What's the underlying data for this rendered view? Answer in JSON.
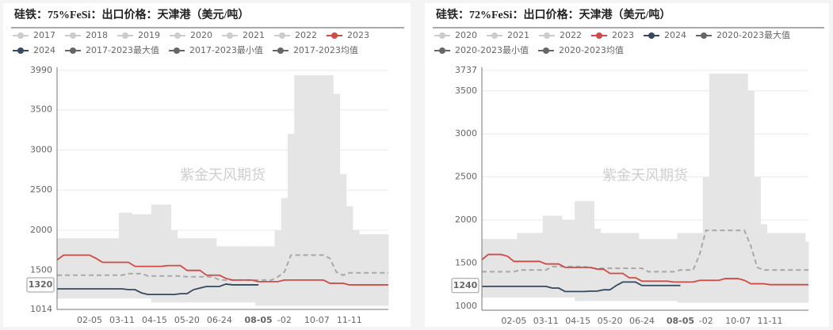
{
  "chart_data": [
    {
      "type": "line",
      "title": "硅铁：75%FeSi：出口价格：天津港（美元/吨）",
      "watermark": "紫金天风期货",
      "legend_inactive": [
        "2017",
        "2018",
        "2019",
        "2020",
        "2021",
        "2022"
      ],
      "inactive_color": "#cccccc",
      "categories": [
        null,
        null,
        null,
        null,
        null,
        "02-05",
        null,
        null,
        null,
        null,
        "03-11",
        null,
        null,
        null,
        null,
        "04-15",
        null,
        null,
        null,
        null,
        "05-20",
        null,
        null,
        null,
        null,
        "06-24",
        null,
        null,
        null,
        null,
        null,
        "08-05",
        null,
        null,
        null,
        "-02",
        null,
        null,
        null,
        null,
        "10-07",
        null,
        null,
        null,
        null,
        "11-11",
        null,
        null,
        null,
        null,
        null,
        null
      ],
      "ylim": [
        1014,
        3990
      ],
      "yticks": [
        1014,
        1500,
        2000,
        2500,
        3000,
        3500,
        3990
      ],
      "grid": true,
      "pointer": {
        "x": "08-05",
        "y": 1320
      },
      "series": [
        {
          "name": "2023",
          "color": "#d14a45",
          "style": "solid",
          "values": [
            1630,
            1690,
            1690,
            1690,
            1690,
            1690,
            1650,
            1600,
            1600,
            1600,
            1600,
            1600,
            1550,
            1550,
            1550,
            1550,
            1550,
            1560,
            1560,
            1560,
            1500,
            1500,
            1500,
            1440,
            1440,
            1440,
            1400,
            1380,
            1380,
            1380,
            1380,
            1360,
            1360,
            1360,
            1360,
            1380,
            1380,
            1380,
            1380,
            1380,
            1380,
            1380,
            1340,
            1340,
            1340,
            1320,
            1320,
            1320,
            1320,
            1320,
            1320,
            1320
          ]
        },
        {
          "name": "2024",
          "color": "#34495e",
          "style": "solid",
          "values": [
            1270,
            1270,
            1270,
            1270,
            1270,
            1270,
            1270,
            1270,
            1270,
            1270,
            1270,
            1260,
            1260,
            1220,
            1200,
            1200,
            1200,
            1200,
            1200,
            1210,
            1210,
            1260,
            1280,
            1300,
            1300,
            1300,
            1330,
            1320,
            1320,
            1320,
            1320,
            1320,
            null,
            null,
            null,
            null,
            null,
            null,
            null,
            null,
            null,
            null,
            null,
            null,
            null,
            null,
            null,
            null,
            null,
            null,
            null,
            null
          ]
        },
        {
          "name": "2017-2023最大值",
          "color": "#666666",
          "style": "band-upper",
          "fill": "#e5e5e5",
          "values": [
            1900,
            1900,
            1900,
            1900,
            1900,
            1900,
            1900,
            1900,
            1900,
            1900,
            2220,
            2220,
            2200,
            2200,
            2200,
            2320,
            2320,
            2320,
            2000,
            1900,
            1900,
            1900,
            1900,
            1900,
            1900,
            1800,
            1800,
            1800,
            1800,
            1800,
            1800,
            1800,
            1800,
            1800,
            2000,
            2400,
            3200,
            3930,
            3930,
            3930,
            3930,
            3930,
            3930,
            3700,
            2700,
            2300,
            2000,
            1950,
            1950,
            1950,
            1950,
            1950
          ]
        },
        {
          "name": "2017-2023最小值",
          "color": "#666666",
          "style": "band-lower",
          "values": [
            1150,
            1150,
            1150,
            1150,
            1150,
            1150,
            1150,
            1150,
            1150,
            1150,
            1150,
            1150,
            1150,
            1150,
            1150,
            1100,
            1100,
            1100,
            1100,
            1100,
            1100,
            1100,
            1100,
            1100,
            1100,
            1100,
            1100,
            1100,
            1100,
            1100,
            1100,
            1060,
            1060,
            1060,
            1060,
            1060,
            1060,
            1060,
            1060,
            1060,
            1060,
            1060,
            1060,
            1060,
            1060,
            1060,
            1060,
            1060,
            1060,
            1060,
            1060,
            1060
          ]
        },
        {
          "name": "2017-2023均值",
          "color": "#666666",
          "style": "dashed",
          "line_color": "#a8a8a8",
          "values": [
            1440,
            1440,
            1440,
            1440,
            1440,
            1440,
            1440,
            1440,
            1440,
            1440,
            1440,
            1460,
            1460,
            1460,
            1430,
            1430,
            1430,
            1430,
            1430,
            1430,
            1420,
            1420,
            1420,
            1420,
            1420,
            1380,
            1380,
            1380,
            1380,
            1380,
            1380,
            1380,
            1380,
            1380,
            1420,
            1480,
            1690,
            1690,
            1690,
            1690,
            1690,
            1690,
            1650,
            1480,
            1440,
            1470,
            1470,
            1470,
            1470,
            1470,
            1470,
            1470
          ]
        }
      ]
    },
    {
      "type": "line",
      "title": "硅铁：72%FeSi：出口价格：天津港（美元/吨）",
      "watermark": "紫金天风期货",
      "legend_inactive": [
        "2020",
        "2021",
        "2022"
      ],
      "inactive_color": "#cccccc",
      "categories": [
        null,
        null,
        null,
        null,
        null,
        "02-05",
        null,
        null,
        null,
        null,
        "03-11",
        null,
        null,
        null,
        null,
        "04-15",
        null,
        null,
        null,
        null,
        "05-20",
        null,
        null,
        null,
        null,
        "06-24",
        null,
        null,
        null,
        null,
        null,
        "08-05",
        null,
        null,
        null,
        "-02",
        null,
        null,
        null,
        null,
        "10-07",
        null,
        null,
        null,
        null,
        "11-11",
        null,
        null,
        null,
        null,
        null,
        null
      ],
      "ylim": [
        953,
        3737
      ],
      "yticks": [
        1000,
        1500,
        2000,
        2500,
        3000,
        3500,
        3737
      ],
      "grid": true,
      "pointer": {
        "x": "08-05",
        "y": 1240
      },
      "series": [
        {
          "name": "2023",
          "color": "#d14a45",
          "style": "solid",
          "values": [
            1540,
            1600,
            1600,
            1600,
            1580,
            1520,
            1520,
            1520,
            1520,
            1520,
            1490,
            1490,
            1490,
            1450,
            1450,
            1450,
            1450,
            1450,
            1430,
            1430,
            1380,
            1380,
            1380,
            1330,
            1330,
            1290,
            1290,
            1290,
            1290,
            1290,
            1280,
            1280,
            1280,
            1280,
            1300,
            1300,
            1300,
            1300,
            1320,
            1320,
            1320,
            1300,
            1260,
            1260,
            1260,
            1250,
            1250,
            1250,
            1250,
            1250,
            1250,
            1250
          ]
        },
        {
          "name": "2024",
          "color": "#34495e",
          "style": "solid",
          "values": [
            1230,
            1230,
            1230,
            1230,
            1230,
            1230,
            1230,
            1230,
            1230,
            1230,
            1230,
            1210,
            1210,
            1170,
            1170,
            1170,
            1170,
            1175,
            1175,
            1190,
            1190,
            1240,
            1280,
            1280,
            1280,
            1240,
            1240,
            1240,
            1240,
            1240,
            1240,
            1240,
            null,
            null,
            null,
            null,
            null,
            null,
            null,
            null,
            null,
            null,
            null,
            null,
            null,
            null,
            null,
            null,
            null,
            null,
            null,
            null
          ]
        },
        {
          "name": "2020-2023最大值",
          "color": "#666666",
          "style": "band-upper",
          "fill": "#e5e5e5",
          "values": [
            1780,
            1780,
            1780,
            1780,
            1780,
            1780,
            1850,
            1850,
            1850,
            1850,
            2050,
            2050,
            2050,
            2000,
            2000,
            2220,
            2220,
            2220,
            1900,
            1850,
            1850,
            1850,
            1850,
            1850,
            1850,
            1780,
            1780,
            1780,
            1780,
            1780,
            1780,
            1850,
            1850,
            1850,
            1850,
            2500,
            3700,
            3700,
            3700,
            3700,
            3700,
            3700,
            3500,
            2500,
            1950,
            1850,
            1850,
            1850,
            1850,
            1850,
            1850,
            1750
          ]
        },
        {
          "name": "2020-2023最小值",
          "color": "#666666",
          "style": "band-lower",
          "values": [
            1100,
            1100,
            1100,
            1100,
            1100,
            1100,
            1100,
            1100,
            1100,
            1100,
            1100,
            1100,
            1100,
            1100,
            1100,
            1060,
            1060,
            1060,
            1060,
            1060,
            1060,
            1060,
            1060,
            1060,
            1060,
            1060,
            1060,
            1060,
            1060,
            1060,
            1060,
            1040,
            1040,
            1040,
            1040,
            1040,
            1040,
            1040,
            1040,
            1040,
            1040,
            1040,
            1040,
            1040,
            1040,
            1040,
            1040,
            1040,
            1040,
            1040,
            1040,
            1040
          ]
        },
        {
          "name": "2020-2023均值",
          "color": "#666666",
          "style": "dashed",
          "line_color": "#a8a8a8",
          "values": [
            1400,
            1400,
            1400,
            1400,
            1400,
            1400,
            1420,
            1420,
            1420,
            1420,
            1420,
            1460,
            1460,
            1460,
            1460,
            1460,
            1460,
            1440,
            1440,
            1440,
            1440,
            1440,
            1440,
            1440,
            1440,
            1440,
            1400,
            1400,
            1400,
            1400,
            1400,
            1420,
            1420,
            1420,
            1600,
            1880,
            1880,
            1880,
            1880,
            1880,
            1880,
            1880,
            1700,
            1450,
            1420,
            1420,
            1420,
            1420,
            1420,
            1420,
            1420,
            1420
          ]
        }
      ]
    }
  ]
}
